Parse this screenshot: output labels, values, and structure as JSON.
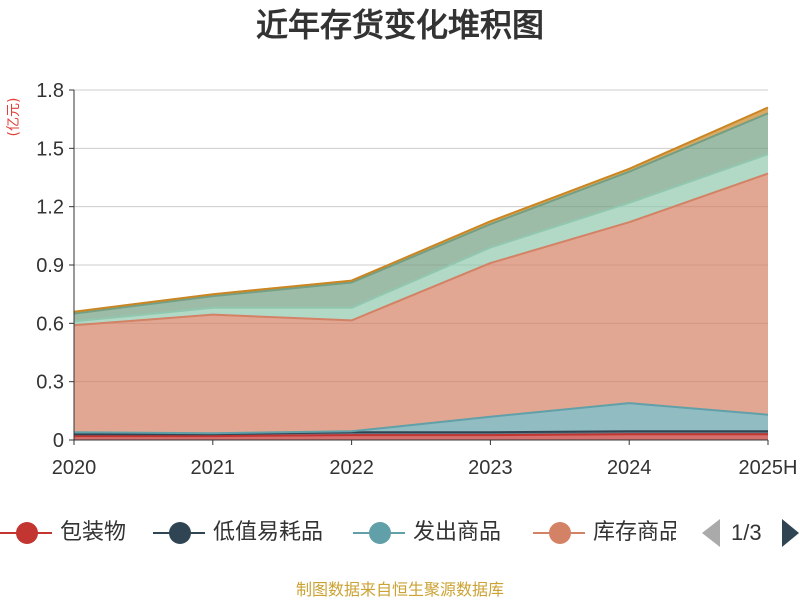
{
  "chart_data": {
    "type": "area",
    "stacked": true,
    "title": "近年存货变化堆积图",
    "ylabel": "(亿元)",
    "xlabel": "",
    "categories": [
      "2020",
      "2021",
      "2022",
      "2023",
      "2024",
      "2025H"
    ],
    "ylim": [
      0,
      1.8
    ],
    "yticks": [
      0,
      0.3,
      0.6,
      0.9,
      1.2,
      1.5,
      1.8
    ],
    "grid": true,
    "legend_position": "bottom",
    "series": [
      {
        "name": "包装物",
        "color": "#c23531",
        "values": [
          0.02,
          0.02,
          0.025,
          0.025,
          0.03,
          0.03
        ]
      },
      {
        "name": "低值易耗品",
        "color": "#2f4554",
        "values": [
          0.01,
          0.01,
          0.015,
          0.015,
          0.015,
          0.015
        ]
      },
      {
        "name": "发出商品",
        "color": "#61a0a8",
        "values": [
          0.01,
          0.005,
          0.005,
          0.08,
          0.145,
          0.085
        ]
      },
      {
        "name": "库存商品",
        "color": "#d48265",
        "values": [
          0.55,
          0.61,
          0.57,
          0.79,
          0.93,
          1.24
        ]
      },
      {
        "color": "#91c7ae",
        "values": [
          0.02,
          0.035,
          0.065,
          0.08,
          0.1,
          0.1
        ]
      },
      {
        "color": "#749f83",
        "values": [
          0.04,
          0.06,
          0.13,
          0.12,
          0.16,
          0.21
        ]
      },
      {
        "color": "#ca8622",
        "values": [
          0.01,
          0.01,
          0.01,
          0.015,
          0.015,
          0.03
        ]
      }
    ]
  },
  "legend": {
    "page": "1/3",
    "prev_icon": "triangle-left-icon",
    "next_icon": "triangle-right-icon",
    "prev_color": "#aaaaaa",
    "next_color": "#2f4554"
  },
  "footer": {
    "text": "制图数据来自恒生聚源数据库"
  }
}
